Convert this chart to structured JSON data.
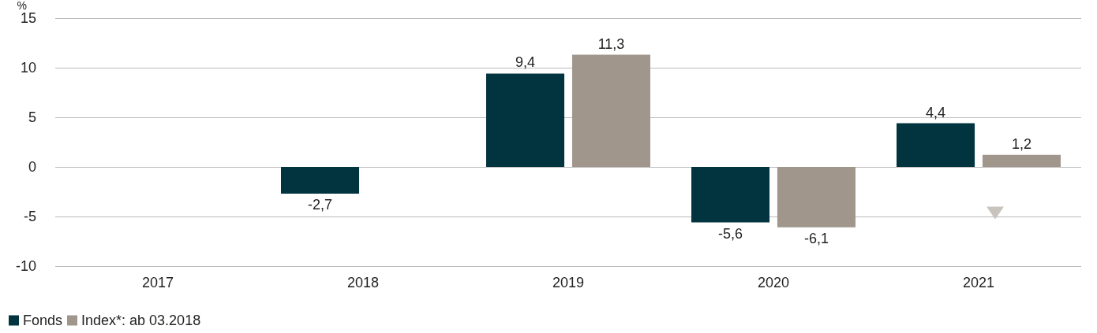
{
  "chart_data": {
    "type": "bar",
    "ylabel": "%",
    "categories": [
      "2017",
      "2018",
      "2019",
      "2020",
      "2021"
    ],
    "series": [
      {
        "name": "Fonds",
        "color": "#023440",
        "values": [
          null,
          -2.7,
          9.4,
          -5.6,
          4.4
        ],
        "value_labels": [
          null,
          "-2,7",
          "9,4",
          "-5,6",
          "4,4"
        ]
      },
      {
        "name": "Index*: ab 03.2018",
        "color": "#a0968c",
        "values": [
          null,
          null,
          11.3,
          -6.1,
          1.2
        ],
        "value_labels": [
          null,
          null,
          "11,3",
          "-6,1",
          "1,2"
        ]
      }
    ],
    "ylim": [
      -10,
      15
    ],
    "yticks": [
      -10,
      -5,
      0,
      5,
      10,
      15
    ],
    "grid": "y",
    "legend": "bottom left"
  }
}
